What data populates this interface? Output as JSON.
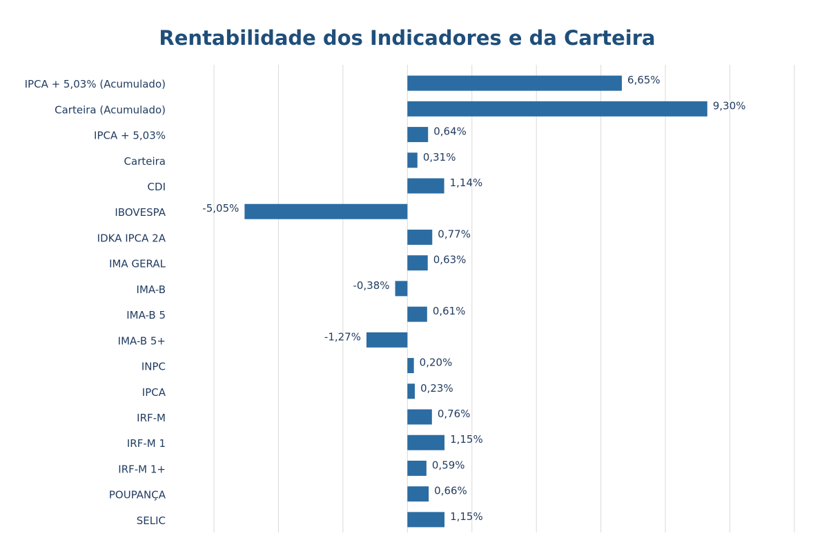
{
  "chart_data": {
    "type": "bar",
    "orientation": "horizontal",
    "title": "Rentabilidade dos Indicadores e da Carteira",
    "categories": [
      "IPCA + 5,03% (Acumulado)",
      "Carteira (Acumulado)",
      "IPCA + 5,03%",
      "Carteira",
      "CDI",
      "IBOVESPA",
      "IDKA IPCA 2A",
      "IMA GERAL",
      "IMA-B",
      "IMA-B 5",
      "IMA-B 5+",
      "INPC",
      "IPCA",
      "IRF-M",
      "IRF-M 1",
      "IRF-M 1+",
      "POUPANÇA",
      "SELIC"
    ],
    "values": [
      6.65,
      9.3,
      0.64,
      0.31,
      1.14,
      -5.05,
      0.77,
      0.63,
      -0.38,
      0.61,
      -1.27,
      0.2,
      0.23,
      0.76,
      1.15,
      0.59,
      0.66,
      1.15
    ],
    "value_labels": [
      "6,65%",
      "9,30%",
      "0,64%",
      "0,31%",
      "1,14%",
      "-5,05%",
      "0,77%",
      "0,63%",
      "-0,38%",
      "0,61%",
      "-1,27%",
      "0,20%",
      "0,23%",
      "0,76%",
      "1,15%",
      "0,59%",
      "0,66%",
      "1,15%"
    ],
    "color": "#2b6ca3",
    "xlim": [
      -6,
      12
    ],
    "xticks": [
      -6,
      -4,
      -2,
      0,
      2,
      4,
      6,
      8,
      10,
      12
    ],
    "grid": true
  }
}
